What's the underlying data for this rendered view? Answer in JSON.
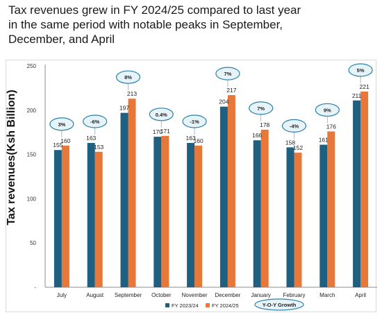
{
  "headline": {
    "line1": "Tax revenues grew in FY 2024/25 compared to last year",
    "line2": "in the same period with notable peaks in September,",
    "line3": "December, and April"
  },
  "chart_data": {
    "type": "bar",
    "title": "",
    "ylabel": "Tax revenues(Ksh Billion)",
    "xlabel": "",
    "ylim": [
      0,
      250
    ],
    "yticks": [
      "-",
      "50",
      "100",
      "150",
      "200",
      "250"
    ],
    "grid": false,
    "legend": "bottom",
    "categories": [
      "July",
      "August",
      "September",
      "October",
      "November",
      "December",
      "January",
      "February",
      "March",
      "April"
    ],
    "series": [
      {
        "name": "FY 2023/24",
        "color": "#1f5f7f",
        "values": [
          155,
          163,
          197,
          170,
          163,
          204,
          166,
          158,
          161,
          211
        ]
      },
      {
        "name": "FY 2024/25",
        "color": "#e8773a",
        "values": [
          160,
          153,
          213,
          171,
          160,
          217,
          178,
          152,
          176,
          221
        ]
      }
    ],
    "growth_labels": [
      "3%",
      "-6%",
      "8%",
      "0.4%",
      "-1%",
      "7%",
      "7%",
      "-4%",
      "9%",
      "5%"
    ],
    "growth_legend": "Y-O-Y Growth"
  },
  "colors": {
    "bubble_fill": "#e6f4fa",
    "bubble_stroke": "#2b7fa8",
    "axis": "#8c8c8c"
  }
}
